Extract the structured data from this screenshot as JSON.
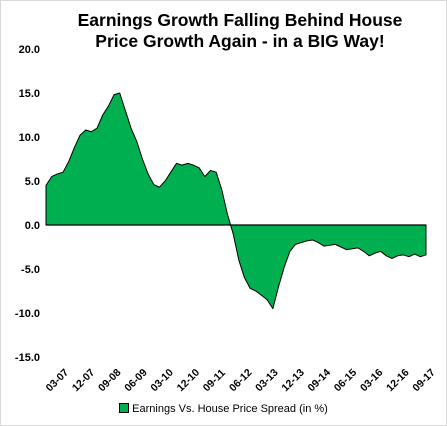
{
  "chart_data": {
    "type": "area",
    "title_line1": "Earnings Growth Falling Behind House",
    "title_line2": "Price Growth Again - in a BIG Way!",
    "ylim": [
      -15,
      20
    ],
    "yticks": [
      "20.0",
      "15.0",
      "10.0",
      "5.0",
      "0.0",
      "-5.0",
      "-10.0",
      "-15.0"
    ],
    "xticks": [
      "03-07",
      "12-07",
      "09-08",
      "06-09",
      "03-10",
      "12-10",
      "09-11",
      "06-12",
      "03-13",
      "12-13",
      "09-14",
      "06-15",
      "03-16",
      "12-16",
      "09-17"
    ],
    "series": [
      {
        "name": "Earnings Vs. House Price Spread (in %)",
        "color": "#00b050",
        "values": [
          4.5,
          5.5,
          5.8,
          6.0,
          7.2,
          8.8,
          10.2,
          10.8,
          10.6,
          11.0,
          12.5,
          13.5,
          14.8,
          15.0,
          13.0,
          11.0,
          9.5,
          7.5,
          5.8,
          4.6,
          4.3,
          5.0,
          6.0,
          7.0,
          6.8,
          7.0,
          6.8,
          6.5,
          5.5,
          6.2,
          6.0,
          4.0,
          1.2,
          -1.0,
          -4.0,
          -6.0,
          -7.2,
          -7.5,
          -8.0,
          -8.5,
          -9.5,
          -7.0,
          -4.8,
          -3.0,
          -2.2,
          -2.0,
          -1.8,
          -1.7,
          -2.0,
          -2.4,
          -2.3,
          -2.2,
          -2.5,
          -2.8,
          -2.7,
          -2.6,
          -3.0,
          -3.5,
          -3.2,
          -3.0,
          -3.5,
          -3.8,
          -3.5,
          -3.4,
          -3.6,
          -3.3,
          -3.6,
          -3.4
        ]
      }
    ],
    "legend": "Earnings Vs. House Price Spread (in %)",
    "legend_position": "bottom",
    "grid": false
  }
}
